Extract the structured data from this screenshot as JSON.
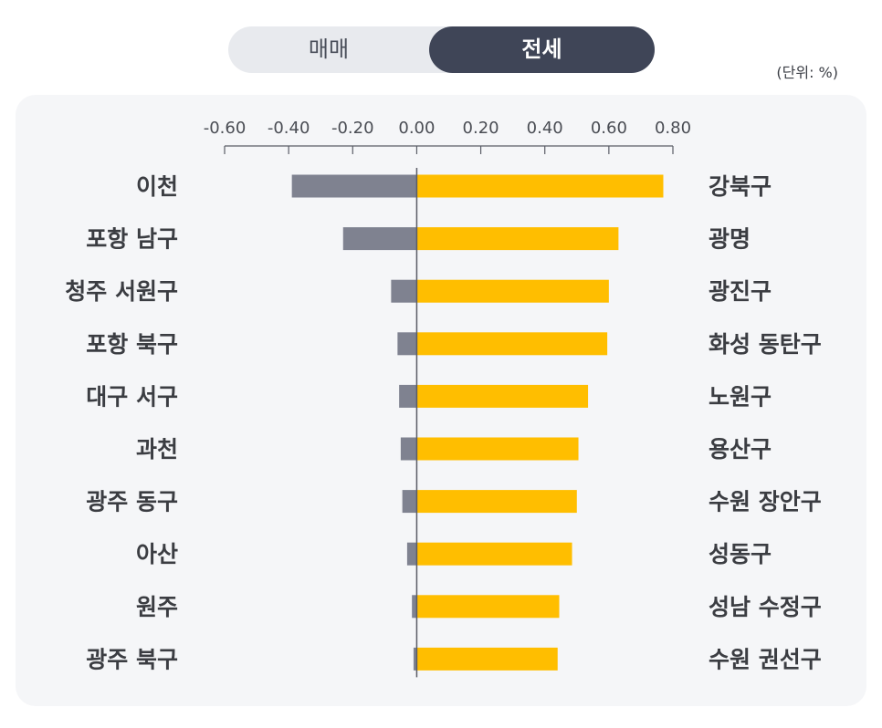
{
  "toggle": {
    "options": [
      "매매",
      "전세"
    ],
    "selected": "전세"
  },
  "unit_label": "(단위: %)",
  "colors": {
    "negative_bar": "#7f8290",
    "positive_bar": "#ffbe00",
    "axis": "#5a5d66",
    "toggle_active_bg": "#3f4557"
  },
  "chart_data": {
    "type": "bar",
    "orientation": "horizontal",
    "x_ticks": [
      -0.6,
      -0.4,
      -0.2,
      0.0,
      0.2,
      0.4,
      0.6,
      0.8
    ],
    "x_tick_labels": [
      "-0.60",
      "-0.40",
      "-0.20",
      "0.00",
      "0.20",
      "0.40",
      "0.60",
      "0.80"
    ],
    "xlim": [
      -0.6,
      0.8
    ],
    "grid": false,
    "series": [
      {
        "categories": [
          "이천",
          "포항 남구",
          "청주 서원구",
          "포항 북구",
          "대구 서구",
          "과천",
          "광주 동구",
          "아산",
          "원주",
          "광주 북구"
        ],
        "values": [
          -0.39,
          -0.23,
          -0.08,
          -0.06,
          -0.055,
          -0.05,
          -0.045,
          -0.03,
          -0.015,
          -0.01
        ]
      },
      {
        "categories": [
          "강북구",
          "광명",
          "광진구",
          "화성 동탄구",
          "노원구",
          "용산구",
          "수원 장안구",
          "성동구",
          "성남 수정구",
          "수원 권선구"
        ],
        "values": [
          0.77,
          0.63,
          0.6,
          0.595,
          0.535,
          0.505,
          0.5,
          0.485,
          0.445,
          0.44
        ]
      }
    ]
  }
}
